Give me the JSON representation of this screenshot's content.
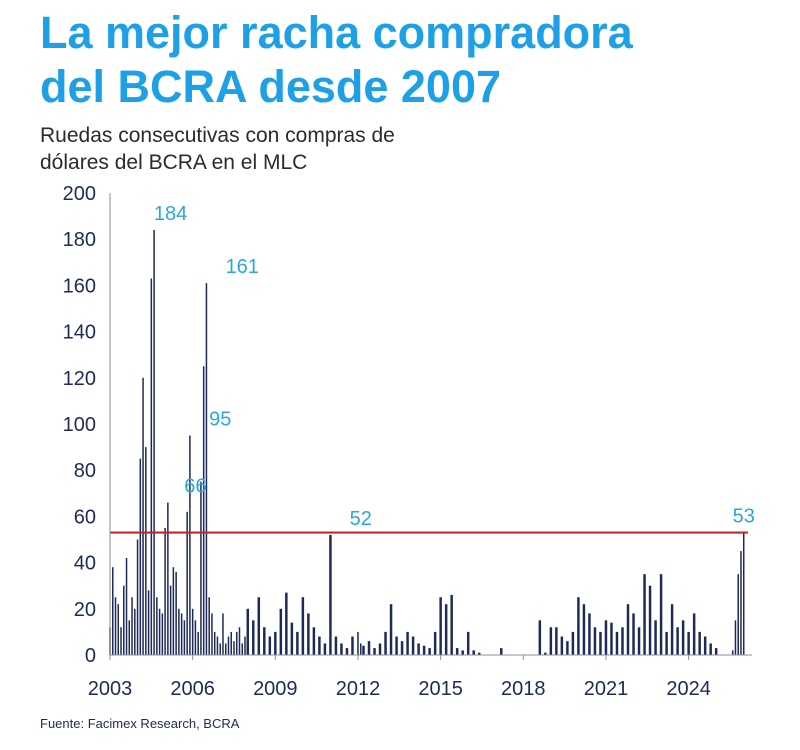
{
  "title_line1": "La mejor racha compradora",
  "title_line2": "del BCRA desde 2007",
  "subtitle_line1": "Ruedas consecutivas con compras de",
  "subtitle_line2": "dólares del BCRA en el MLC",
  "source": "Fuente: Facimex Research, BCRA",
  "colors": {
    "title": "#1ea0e6",
    "bars": "#1d2a57",
    "labels": "#2aa7e0",
    "reference": "#c0282d"
  },
  "chart_data": {
    "type": "bar",
    "x_range": [
      2003,
      2026.3
    ],
    "ylim": [
      0,
      200
    ],
    "y_ticks": [
      "0",
      "20",
      "40",
      "60",
      "80",
      "100",
      "120",
      "140",
      "160",
      "180",
      "200"
    ],
    "x_ticks": [
      "2003",
      "2006",
      "2009",
      "2012",
      "2015",
      "2018",
      "2021",
      "2024"
    ],
    "grid": false,
    "legend": "none",
    "reference_line": 53,
    "annotations": [
      {
        "text": "184",
        "x": 2005.2,
        "y": 184
      },
      {
        "text": "66",
        "x": 2006.1,
        "y": 66
      },
      {
        "text": "95",
        "x": 2007.0,
        "y": 95
      },
      {
        "text": "161",
        "x": 2007.8,
        "y": 161
      },
      {
        "text": "52",
        "x": 2012.1,
        "y": 52
      },
      {
        "text": "53",
        "x": 2026.0,
        "y": 53
      }
    ],
    "series": [
      {
        "x": [
          2003.0,
          2003.1,
          2003.2,
          2003.3,
          2003.4,
          2003.5,
          2003.6,
          2003.7,
          2003.8,
          2003.9,
          2004.0,
          2004.1,
          2004.2,
          2004.3,
          2004.4,
          2004.5,
          2004.6,
          2004.7,
          2004.8,
          2004.9,
          2005.0,
          2005.1,
          2005.2,
          2005.3,
          2005.4,
          2005.5,
          2005.6,
          2005.7,
          2005.8,
          2005.9,
          2006.0,
          2006.1,
          2006.2,
          2006.3,
          2006.4,
          2006.5,
          2006.6,
          2006.7,
          2006.8,
          2006.9,
          2007.0,
          2007.1,
          2007.2,
          2007.3,
          2007.4,
          2007.5,
          2007.6,
          2007.7,
          2007.8,
          2007.9,
          2008.0,
          2008.2,
          2008.4,
          2008.6,
          2008.8,
          2009.0,
          2009.2,
          2009.4,
          2009.6,
          2009.8,
          2010.0,
          2010.2,
          2010.4,
          2010.6,
          2010.8,
          2011.0,
          2011.2,
          2011.4,
          2011.6,
          2011.8,
          2012.0,
          2012.1,
          2012.2,
          2012.4,
          2012.6,
          2012.8,
          2013.0,
          2013.2,
          2013.4,
          2013.6,
          2013.8,
          2014.0,
          2014.2,
          2014.4,
          2014.6,
          2014.8,
          2015.0,
          2015.2,
          2015.4,
          2015.6,
          2015.8,
          2016.0,
          2016.2,
          2016.4,
          2016.6,
          2016.8,
          2017.0,
          2017.2,
          2017.4,
          2017.6,
          2017.8,
          2018.0,
          2018.2,
          2018.4,
          2018.6,
          2018.8,
          2019.0,
          2019.2,
          2019.4,
          2019.6,
          2019.8,
          2020.0,
          2020.2,
          2020.4,
          2020.6,
          2020.8,
          2021.0,
          2021.2,
          2021.4,
          2021.6,
          2021.8,
          2022.0,
          2022.2,
          2022.4,
          2022.6,
          2022.8,
          2023.0,
          2023.2,
          2023.4,
          2023.6,
          2023.8,
          2024.0,
          2024.2,
          2024.4,
          2024.6,
          2024.8,
          2025.0,
          2025.2,
          2025.4,
          2025.6,
          2025.7,
          2025.8,
          2025.9,
          2026.0
        ],
        "values": [
          12,
          38,
          25,
          22,
          12,
          30,
          42,
          15,
          25,
          20,
          50,
          85,
          120,
          90,
          28,
          163,
          184,
          25,
          20,
          18,
          55,
          66,
          30,
          38,
          36,
          20,
          18,
          15,
          62,
          95,
          20,
          15,
          10,
          75,
          125,
          161,
          25,
          18,
          10,
          8,
          5,
          18,
          5,
          8,
          10,
          6,
          10,
          12,
          5,
          8,
          20,
          15,
          25,
          12,
          8,
          10,
          20,
          27,
          14,
          10,
          25,
          18,
          12,
          8,
          5,
          52,
          8,
          5,
          3,
          8,
          10,
          5,
          4,
          6,
          3,
          5,
          10,
          22,
          8,
          6,
          10,
          8,
          5,
          4,
          3,
          10,
          25,
          22,
          26,
          3,
          2,
          10,
          2,
          1,
          0,
          0,
          0,
          3,
          0,
          0,
          0,
          0,
          0,
          0,
          15,
          1,
          12,
          12,
          8,
          6,
          10,
          25,
          22,
          18,
          12,
          10,
          15,
          14,
          10,
          12,
          22,
          18,
          12,
          35,
          30,
          15,
          35,
          10,
          22,
          12,
          15,
          10,
          18,
          10,
          8,
          5,
          3,
          0,
          0,
          2,
          15,
          35,
          45,
          53
        ]
      }
    ]
  }
}
